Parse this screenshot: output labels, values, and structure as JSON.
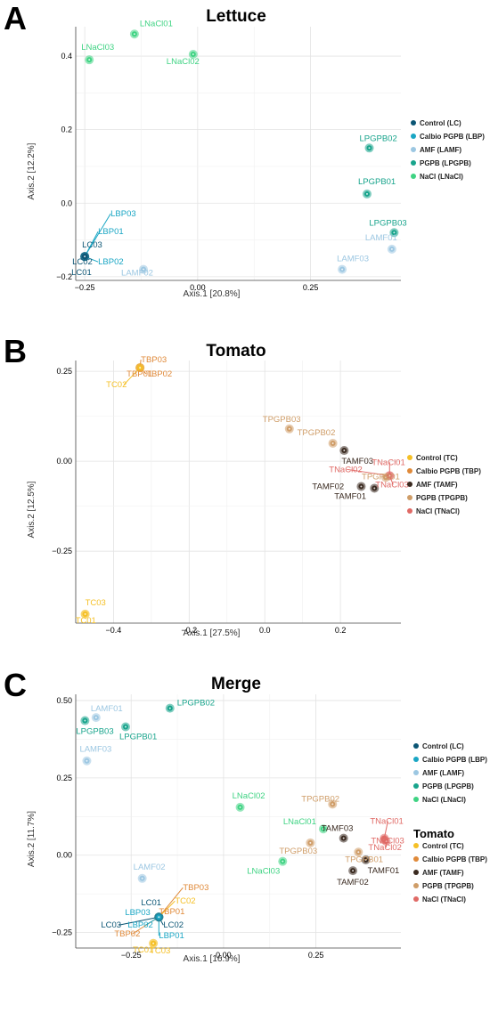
{
  "colors": {
    "LC": "#0b5574",
    "LBP": "#1aa6c4",
    "LAMF": "#9cc7e2",
    "LPGPB": "#18a48c",
    "LNaCl": "#3fd383",
    "TC": "#f5c026",
    "TBP": "#e08a3a",
    "TAMF": "#3a2a20",
    "TPGPB": "#cf9d68",
    "TNaCl": "#e06a66"
  },
  "chart_data": [
    {
      "type": "scatter",
      "panel": "A",
      "title": "Lettuce",
      "xlabel": "Axis.1   [20.8%]",
      "ylabel": "Axis.2   [12.2%]",
      "xlim": [
        -0.27,
        0.45
      ],
      "ylim": [
        -0.21,
        0.48
      ],
      "xticks": [
        -0.25,
        0,
        0.25
      ],
      "xtick_labels": [
        "−0.25",
        "0.00",
        "0.25"
      ],
      "yticks": [
        -0.2,
        0,
        0.2,
        0.4
      ],
      "ytick_labels": [
        "−0.2",
        "0.0",
        "0.2",
        "0.4"
      ],
      "legend_position": "right",
      "legend": [
        {
          "label": "Control (LC)",
          "group": "LC"
        },
        {
          "label": "Calbio PGPB (LBP)",
          "group": "LBP"
        },
        {
          "label": "AMF (LAMF)",
          "group": "LAMF"
        },
        {
          "label": "PGPB (LPGPB)",
          "group": "LPGPB"
        },
        {
          "label": "NaCl (LNaCl)",
          "group": "LNaCl"
        }
      ],
      "points": [
        {
          "label": "LNaCl01",
          "group": "LNaCl",
          "x": -0.14,
          "y": 0.46
        },
        {
          "label": "LNaCl03",
          "group": "LNaCl",
          "x": -0.24,
          "y": 0.39
        },
        {
          "label": "LNaCl02",
          "group": "LNaCl",
          "x": -0.01,
          "y": 0.405
        },
        {
          "label": "LPGPB02",
          "group": "LPGPB",
          "x": 0.38,
          "y": 0.15
        },
        {
          "label": "LPGPB01",
          "group": "LPGPB",
          "x": 0.375,
          "y": 0.025
        },
        {
          "label": "LPGPB03",
          "group": "LPGPB",
          "x": 0.435,
          "y": -0.08
        },
        {
          "label": "LAMF01",
          "group": "LAMF",
          "x": 0.43,
          "y": -0.125
        },
        {
          "label": "LAMF03",
          "group": "LAMF",
          "x": 0.32,
          "y": -0.18
        },
        {
          "label": "LAMF02",
          "group": "LAMF",
          "x": -0.12,
          "y": -0.18
        },
        {
          "label": "LBP03",
          "group": "LBP",
          "x": -0.25,
          "y": -0.145
        },
        {
          "label": "LBP01",
          "group": "LBP",
          "x": -0.25,
          "y": -0.145
        },
        {
          "label": "LBP02",
          "group": "LBP",
          "x": -0.25,
          "y": -0.145
        },
        {
          "label": "LC03",
          "group": "LC",
          "x": -0.25,
          "y": -0.145
        },
        {
          "label": "LC02",
          "group": "LC",
          "x": -0.25,
          "y": -0.145
        },
        {
          "label": "LC01",
          "group": "LC",
          "x": -0.25,
          "y": -0.145
        }
      ]
    },
    {
      "type": "scatter",
      "panel": "B",
      "title": "Tomato",
      "xlabel": "Axis.1   [27.5%]",
      "ylabel": "Axis.2   [12.5%]",
      "xlim": [
        -0.5,
        0.36
      ],
      "ylim": [
        -0.45,
        0.28
      ],
      "xticks": [
        -0.4,
        -0.2,
        0,
        0.2
      ],
      "xtick_labels": [
        "−0.4",
        "−0.2",
        "0.0",
        "0.2"
      ],
      "yticks": [
        -0.25,
        0,
        0.25
      ],
      "ytick_labels": [
        "−0.25",
        "0.00",
        "0.25"
      ],
      "legend_position": "right",
      "legend": [
        {
          "label": "Control (TC)",
          "group": "TC"
        },
        {
          "label": "Calbio PGPB (TBP)",
          "group": "TBP"
        },
        {
          "label": "AMF (TAMF)",
          "group": "TAMF"
        },
        {
          "label": "PGPB (TPGPB)",
          "group": "TPGPB"
        },
        {
          "label": "NaCl (TNaCl)",
          "group": "TNaCl"
        }
      ],
      "points": [
        {
          "label": "TBP03",
          "group": "TBP",
          "x": -0.33,
          "y": 0.26
        },
        {
          "label": "TBP01",
          "group": "TBP",
          "x": -0.33,
          "y": 0.26
        },
        {
          "label": "TBP02",
          "group": "TBP",
          "x": -0.33,
          "y": 0.26
        },
        {
          "label": "TC02",
          "group": "TC",
          "x": -0.33,
          "y": 0.26
        },
        {
          "label": "TPGPB03",
          "group": "TPGPB",
          "x": 0.065,
          "y": 0.09
        },
        {
          "label": "TPGPB02",
          "group": "TPGPB",
          "x": 0.18,
          "y": 0.05
        },
        {
          "label": "TAMF03",
          "group": "TAMF",
          "x": 0.21,
          "y": 0.03
        },
        {
          "label": "TNaCl01",
          "group": "TNaCl",
          "x": 0.33,
          "y": -0.04
        },
        {
          "label": "TNaCl02",
          "group": "TNaCl",
          "x": 0.33,
          "y": -0.04
        },
        {
          "label": "TPGPB01",
          "group": "TPGPB",
          "x": 0.32,
          "y": -0.045
        },
        {
          "label": "TAMF02",
          "group": "TAMF",
          "x": 0.255,
          "y": -0.07
        },
        {
          "label": "TAMF01",
          "group": "TAMF",
          "x": 0.29,
          "y": -0.075
        },
        {
          "label": "TNaCl03",
          "group": "TNaCl",
          "x": 0.33,
          "y": -0.04
        },
        {
          "label": "TC03",
          "group": "TC",
          "x": -0.475,
          "y": -0.425
        },
        {
          "label": "TC01",
          "group": "TC",
          "x": -0.475,
          "y": -0.425
        }
      ]
    },
    {
      "type": "scatter",
      "panel": "C",
      "title": "Merge",
      "xlabel": "Axis.1   [16.9%]",
      "ylabel": "Axis.2   [11.7%]",
      "xlim": [
        -0.4,
        0.48
      ],
      "ylim": [
        -0.3,
        0.52
      ],
      "xticks": [
        -0.25,
        0,
        0.25
      ],
      "xtick_labels": [
        "−0.25",
        "0.00",
        "0.25"
      ],
      "yticks": [
        -0.25,
        0,
        0.25,
        0.5
      ],
      "ytick_labels": [
        "−0.25",
        "0.00",
        "0.25",
        "0.50"
      ],
      "legend_position": "right",
      "legend": [
        {
          "label": "Control (LC)",
          "group": "LC"
        },
        {
          "label": "Calbio PGPB (LBP)",
          "group": "LBP"
        },
        {
          "label": "AMF (LAMF)",
          "group": "LAMF"
        },
        {
          "label": "PGPB (LPGPB)",
          "group": "LPGPB"
        },
        {
          "label": "NaCl (LNaCl)",
          "group": "LNaCl"
        }
      ],
      "legend2_title": "Tomato",
      "legend2": [
        {
          "label": "Control (TC)",
          "group": "TC"
        },
        {
          "label": "Calbio PGPB (TBP)",
          "group": "TBP"
        },
        {
          "label": "AMF (TAMF)",
          "group": "TAMF"
        },
        {
          "label": "PGPB (TPGPB)",
          "group": "TPGPB"
        },
        {
          "label": "NaCl (TNaCl)",
          "group": "TNaCl"
        }
      ],
      "points": [
        {
          "label": "LPGPB02",
          "group": "LPGPB",
          "x": -0.145,
          "y": 0.475
        },
        {
          "label": "LAMF01",
          "group": "LAMF",
          "x": -0.345,
          "y": 0.445
        },
        {
          "label": "LPGPB03",
          "group": "LPGPB",
          "x": -0.375,
          "y": 0.435
        },
        {
          "label": "LPGPB01",
          "group": "LPGPB",
          "x": -0.265,
          "y": 0.415
        },
        {
          "label": "LAMF03",
          "group": "LAMF",
          "x": -0.37,
          "y": 0.305
        },
        {
          "label": "LNaCl02",
          "group": "LNaCl",
          "x": 0.045,
          "y": 0.155
        },
        {
          "label": "TPGPB02",
          "group": "TPGPB",
          "x": 0.295,
          "y": 0.165
        },
        {
          "label": "LNaCl01",
          "group": "LNaCl",
          "x": 0.27,
          "y": 0.085
        },
        {
          "label": "TNaCl01",
          "group": "TNaCl",
          "x": 0.435,
          "y": 0.055
        },
        {
          "label": "TNaCl03",
          "group": "TNaCl",
          "x": 0.435,
          "y": 0.05
        },
        {
          "label": "TAMF03",
          "group": "TAMF",
          "x": 0.325,
          "y": 0.055
        },
        {
          "label": "TPGPB03",
          "group": "TPGPB",
          "x": 0.235,
          "y": 0.04
        },
        {
          "label": "TPGPB01",
          "group": "TPGPB",
          "x": 0.365,
          "y": 0.01
        },
        {
          "label": "TNaCl02",
          "group": "TNaCl",
          "x": 0.44,
          "y": 0.045
        },
        {
          "label": "TAMF01",
          "group": "TAMF",
          "x": 0.385,
          "y": -0.015
        },
        {
          "label": "TAMF02",
          "group": "TAMF",
          "x": 0.35,
          "y": -0.05
        },
        {
          "label": "LNaCl03",
          "group": "LNaCl",
          "x": 0.16,
          "y": -0.02
        },
        {
          "label": "LAMF02",
          "group": "LAMF",
          "x": -0.22,
          "y": -0.075
        },
        {
          "label": "TBP03",
          "group": "TBP",
          "x": -0.175,
          "y": -0.2
        },
        {
          "label": "TC02",
          "group": "TC",
          "x": -0.175,
          "y": -0.2
        },
        {
          "label": "TBP01",
          "group": "TBP",
          "x": -0.175,
          "y": -0.2
        },
        {
          "label": "TBP02",
          "group": "TBP",
          "x": -0.175,
          "y": -0.2
        },
        {
          "label": "LC01",
          "group": "LC",
          "x": -0.175,
          "y": -0.2
        },
        {
          "label": "LBP03",
          "group": "LBP",
          "x": -0.175,
          "y": -0.2
        },
        {
          "label": "LC03",
          "group": "LC",
          "x": -0.175,
          "y": -0.2
        },
        {
          "label": "LBP02",
          "group": "LBP",
          "x": -0.175,
          "y": -0.2
        },
        {
          "label": "LC02",
          "group": "LC",
          "x": -0.175,
          "y": -0.2
        },
        {
          "label": "LBP01",
          "group": "LBP",
          "x": -0.175,
          "y": -0.2
        },
        {
          "label": "TC01",
          "group": "TC",
          "x": -0.19,
          "y": -0.285
        },
        {
          "label": "TC03",
          "group": "TC",
          "x": -0.19,
          "y": -0.285
        }
      ]
    }
  ]
}
